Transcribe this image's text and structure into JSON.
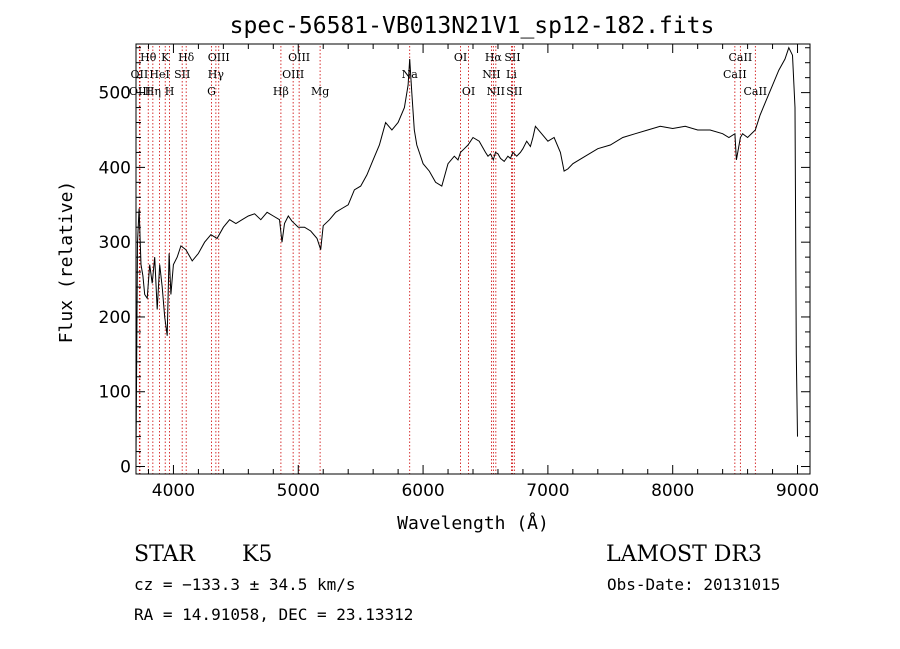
{
  "chart_data": {
    "type": "line",
    "title": "spec-56581-VB013N21V1_sp12-182.fits",
    "xlabel": "Wavelength (Å)",
    "ylabel": "Flux (relative)",
    "xlim": [
      3700,
      9100
    ],
    "ylim": [
      -10,
      565
    ],
    "x_ticks": [
      4000,
      5000,
      6000,
      7000,
      8000,
      9000
    ],
    "y_ticks": [
      0,
      100,
      200,
      300,
      400,
      500
    ],
    "grid": false,
    "series": [
      {
        "name": "flux",
        "x": [
          3700,
          3712,
          3725,
          3740,
          3755,
          3770,
          3790,
          3810,
          3830,
          3850,
          3870,
          3890,
          3910,
          3930,
          3950,
          3965,
          3980,
          4000,
          4030,
          4060,
          4100,
          4150,
          4200,
          4250,
          4300,
          4350,
          4400,
          4450,
          4500,
          4550,
          4600,
          4650,
          4700,
          4750,
          4800,
          4850,
          4870,
          4890,
          4920,
          4950,
          5000,
          5050,
          5100,
          5150,
          5180,
          5200,
          5250,
          5300,
          5350,
          5400,
          5450,
          5500,
          5550,
          5600,
          5650,
          5700,
          5750,
          5800,
          5850,
          5880,
          5893,
          5910,
          5930,
          5950,
          5970,
          6000,
          6050,
          6100,
          6150,
          6200,
          6250,
          6280,
          6300,
          6330,
          6360,
          6400,
          6450,
          6500,
          6520,
          6540,
          6563,
          6580,
          6600,
          6620,
          6650,
          6680,
          6700,
          6720,
          6750,
          6780,
          6800,
          6830,
          6860,
          6880,
          6900,
          6950,
          7000,
          7050,
          7100,
          7130,
          7160,
          7200,
          7300,
          7400,
          7500,
          7600,
          7700,
          7800,
          7900,
          8000,
          8100,
          8200,
          8300,
          8400,
          8450,
          8498,
          8510,
          8542,
          8560,
          8600,
          8662,
          8700,
          8750,
          8800,
          8850,
          8900,
          8930,
          8960,
          8980,
          8990,
          9000
        ],
        "values": [
          10,
          300,
          345,
          270,
          255,
          230,
          225,
          270,
          245,
          280,
          210,
          270,
          240,
          200,
          175,
          285,
          230,
          270,
          280,
          295,
          290,
          275,
          285,
          300,
          310,
          305,
          320,
          330,
          325,
          330,
          335,
          338,
          330,
          340,
          335,
          330,
          300,
          325,
          335,
          328,
          320,
          320,
          315,
          305,
          290,
          322,
          330,
          340,
          345,
          350,
          370,
          375,
          390,
          410,
          430,
          460,
          450,
          460,
          480,
          510,
          545,
          500,
          450,
          430,
          420,
          405,
          395,
          380,
          375,
          405,
          415,
          410,
          420,
          425,
          430,
          440,
          435,
          420,
          415,
          418,
          410,
          420,
          418,
          412,
          408,
          415,
          412,
          420,
          415,
          420,
          425,
          435,
          428,
          440,
          455,
          445,
          435,
          440,
          420,
          395,
          398,
          405,
          415,
          425,
          430,
          440,
          445,
          450,
          455,
          452,
          455,
          450,
          450,
          445,
          440,
          445,
          410,
          440,
          445,
          440,
          450,
          470,
          490,
          510,
          530,
          545,
          560,
          550,
          480,
          150,
          40
        ]
      }
    ],
    "emission_lines": [
      {
        "label": "Hθ",
        "x": 3798,
        "row": 1
      },
      {
        "label": "OII",
        "x": 3727,
        "row": 2
      },
      {
        "label": "OIII",
        "x": 3732,
        "row": 3
      },
      {
        "label": "Hη",
        "x": 3835,
        "row": 3
      },
      {
        "label": "HeI",
        "x": 3889,
        "row": 2
      },
      {
        "label": "K",
        "x": 3934,
        "row": 1
      },
      {
        "label": "SII",
        "x": 4070,
        "row": 2
      },
      {
        "label": "H",
        "x": 3969,
        "row": 3
      },
      {
        "label": "Hδ",
        "x": 4102,
        "row": 1
      },
      {
        "label": "OIII",
        "x": 4363,
        "row": 1
      },
      {
        "label": "Hγ",
        "x": 4340,
        "row": 2
      },
      {
        "label": "G",
        "x": 4305,
        "row": 3
      },
      {
        "label": "Hβ",
        "x": 4861,
        "row": 3
      },
      {
        "label": "OIII",
        "x": 5007,
        "row": 1
      },
      {
        "label": "OIII",
        "x": 4959,
        "row": 2
      },
      {
        "label": "Mg",
        "x": 5175,
        "row": 3
      },
      {
        "label": "Na",
        "x": 5893,
        "row": 2
      },
      {
        "label": "OI",
        "x": 6300,
        "row": 1
      },
      {
        "label": "OI",
        "x": 6364,
        "row": 3
      },
      {
        "label": "Hα",
        "x": 6563,
        "row": 1
      },
      {
        "label": "SII",
        "x": 6716,
        "row": 1
      },
      {
        "label": "NII",
        "x": 6548,
        "row": 2
      },
      {
        "label": "Li",
        "x": 6708,
        "row": 2
      },
      {
        "label": "NII",
        "x": 6583,
        "row": 3
      },
      {
        "label": "SII",
        "x": 6731,
        "row": 3
      },
      {
        "label": "CaII",
        "x": 8542,
        "row": 1
      },
      {
        "label": "CaII",
        "x": 8498,
        "row": 2
      },
      {
        "label": "CaII",
        "x": 8662,
        "row": 3
      }
    ]
  },
  "info": {
    "class": "STAR",
    "subclass": "K5",
    "survey": "LAMOST DR3",
    "cz": "cz = −133.3 ± 34.5 km/s",
    "obs_date": "Obs-Date: 20131015",
    "coords": "RA =  14.91058, DEC =  23.13312"
  },
  "colors": {
    "spectrum": "#000000",
    "line_markers": "#cc0000",
    "axes": "#000000",
    "background": "#ffffff"
  }
}
